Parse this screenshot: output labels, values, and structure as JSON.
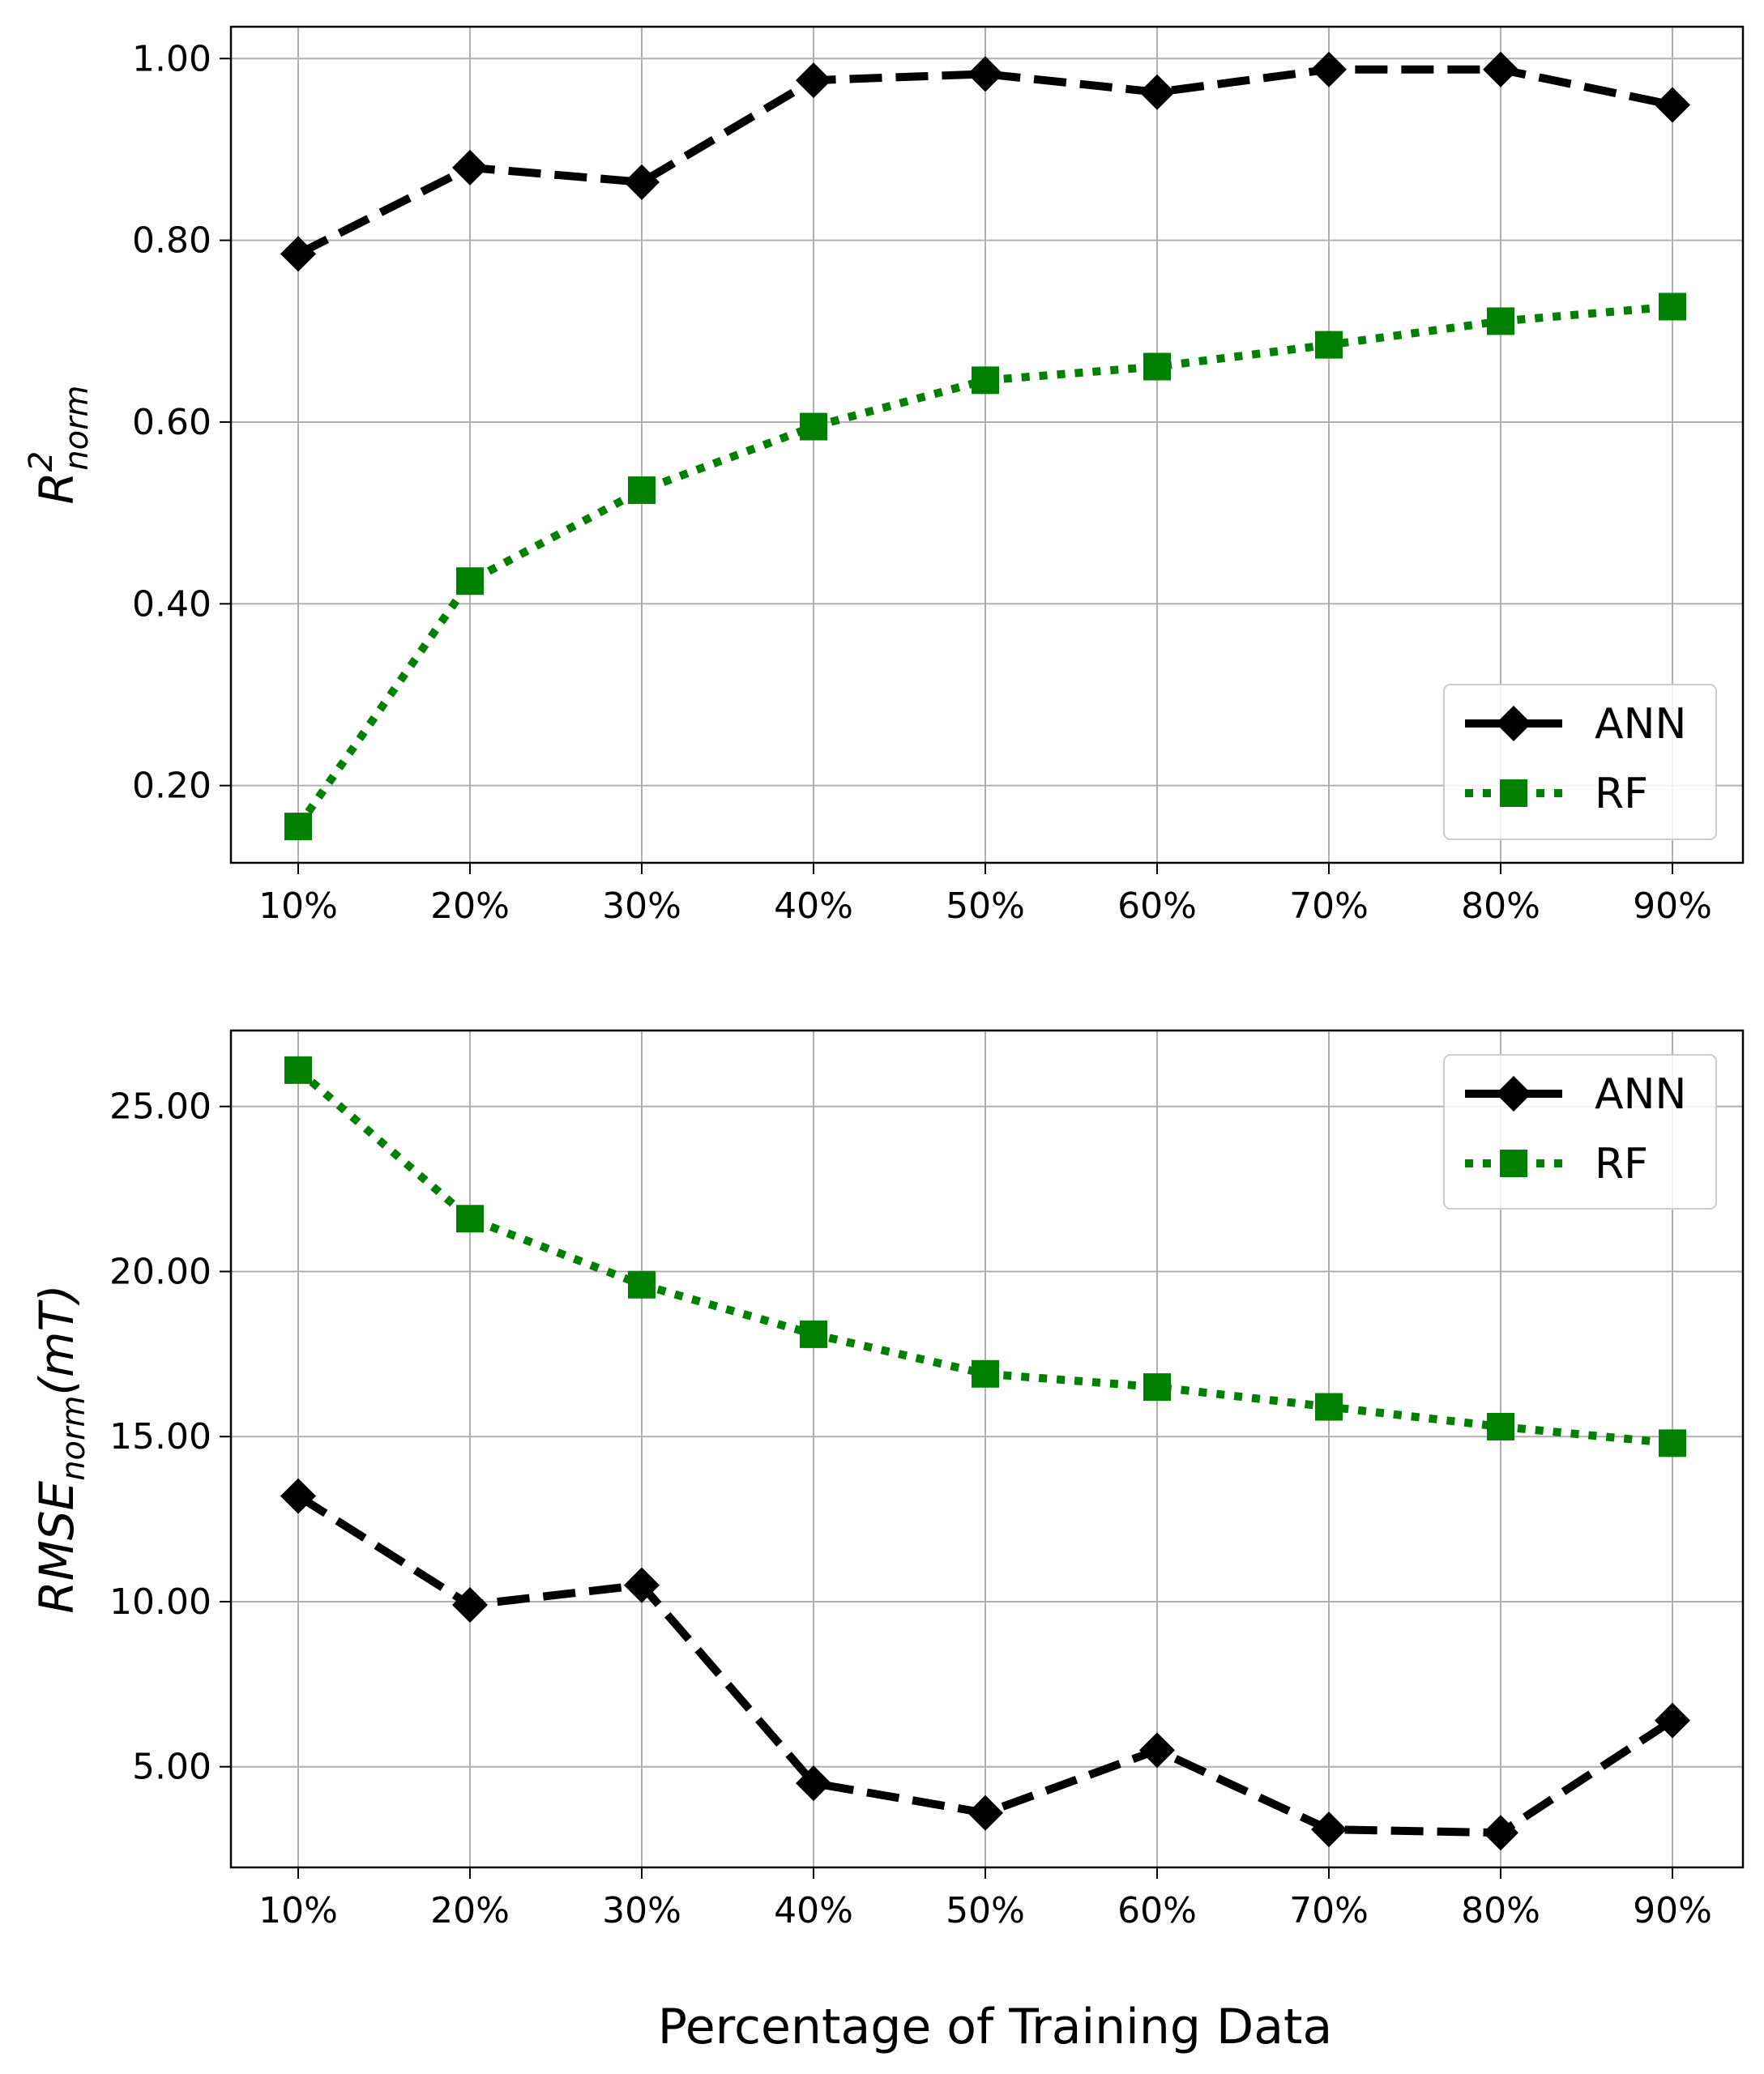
{
  "figure": {
    "xlabel": "Percentage of Training Data",
    "colors": {
      "ANN": "#000000",
      "RF": "#008000",
      "grid": "#b0b0b0"
    }
  },
  "chart_data": [
    {
      "type": "line",
      "panel": "top",
      "ylabel": {
        "main": "R",
        "sup": "2",
        "sub": "norm"
      },
      "categories": [
        "10%",
        "20%",
        "30%",
        "40%",
        "50%",
        "60%",
        "70%",
        "80%",
        "90%"
      ],
      "ylim": [
        0.115,
        1.035
      ],
      "yticks": [
        0.2,
        0.4,
        0.6,
        0.8,
        1.0
      ],
      "ytick_labels": [
        "0.20",
        "0.40",
        "0.60",
        "0.80",
        "1.00"
      ],
      "grid": true,
      "legend": {
        "position": "lower-right",
        "entries": [
          "ANN",
          "RF"
        ]
      },
      "series": [
        {
          "name": "ANN",
          "style": "dashed",
          "marker": "diamond",
          "color": "#000000",
          "values": [
            0.785,
            0.88,
            0.864,
            0.976,
            0.983,
            0.963,
            0.988,
            0.988,
            0.949
          ]
        },
        {
          "name": "RF",
          "style": "dotted",
          "marker": "square",
          "color": "#008000",
          "values": [
            0.155,
            0.425,
            0.525,
            0.595,
            0.646,
            0.661,
            0.685,
            0.711,
            0.727
          ]
        }
      ]
    },
    {
      "type": "line",
      "panel": "bottom",
      "ylabel": {
        "main": "RMSE",
        "sub": "norm",
        "suffix": "(mT)"
      },
      "categories": [
        "10%",
        "20%",
        "30%",
        "40%",
        "50%",
        "60%",
        "70%",
        "80%",
        "90%"
      ],
      "ylim": [
        1.95,
        27.3
      ],
      "yticks": [
        5,
        10,
        15,
        20,
        25
      ],
      "ytick_labels": [
        "5.00",
        "10.00",
        "15.00",
        "20.00",
        "25.00"
      ],
      "grid": true,
      "legend": {
        "position": "upper-right",
        "entries": [
          "ANN",
          "RF"
        ]
      },
      "series": [
        {
          "name": "ANN",
          "style": "dashed",
          "marker": "diamond",
          "color": "#000000",
          "values": [
            13.2,
            9.9,
            10.5,
            4.5,
            3.6,
            5.5,
            3.1,
            3.0,
            6.4
          ]
        },
        {
          "name": "RF",
          "style": "dotted",
          "marker": "square",
          "color": "#008000",
          "values": [
            26.1,
            21.6,
            19.6,
            18.1,
            16.9,
            16.5,
            15.9,
            15.3,
            14.8
          ]
        }
      ]
    }
  ]
}
